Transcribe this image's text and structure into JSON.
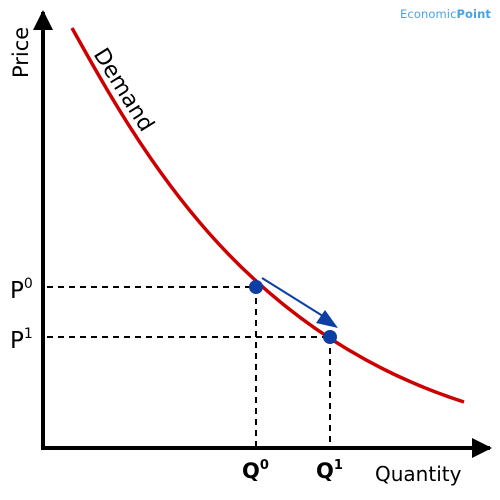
{
  "brand": {
    "prefix": "Economic",
    "suffix": "Point",
    "color": "#4aa3e0"
  },
  "chart_data": {
    "type": "line",
    "xlabel": "Quantity",
    "ylabel": "Price",
    "curve_color": "#cc0000",
    "point_color": "#0b3fa3",
    "arrow_color": "#0b3fa3",
    "grid": false,
    "series": [
      {
        "name": "Demand",
        "shape": "downward-sloping convex curve"
      }
    ],
    "points": [
      {
        "id": "initial",
        "price_label": {
          "base": "P",
          "sup": "0"
        },
        "quantity_label": {
          "base": "Q",
          "sup": "0"
        }
      },
      {
        "id": "new",
        "price_label": {
          "base": "P",
          "sup": "1"
        },
        "quantity_label": {
          "base": "Q",
          "sup": "1"
        }
      }
    ]
  }
}
